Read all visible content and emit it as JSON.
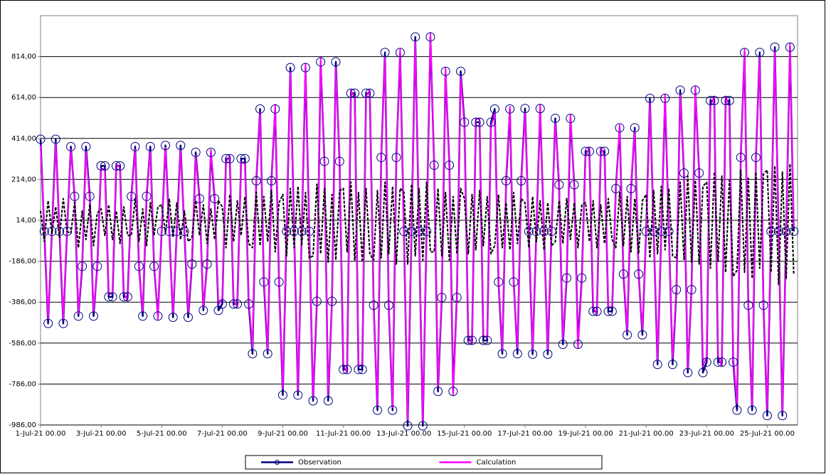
{
  "chart_data": {
    "type": "line",
    "categories": [
      "1-Jul-21 00.00",
      null,
      null,
      null,
      null,
      null,
      null,
      null,
      null,
      null,
      null,
      null,
      null,
      null,
      null,
      null,
      "3-Jul-21 00.00",
      null,
      null,
      null,
      null,
      null,
      null,
      null,
      null,
      null,
      null,
      null,
      null,
      null,
      null,
      null,
      "5-Jul-21 00.00",
      null,
      null,
      null,
      null,
      null,
      null,
      null,
      null,
      null,
      null,
      null,
      null,
      null,
      null,
      null,
      "7-Jul-21 00.00",
      null,
      null,
      null,
      null,
      null,
      null,
      null,
      null,
      null,
      null,
      null,
      null,
      null,
      null,
      null,
      "9-Jul-21 00.00",
      null,
      null,
      null,
      null,
      null,
      null,
      null,
      null,
      null,
      null,
      null,
      null,
      null,
      null,
      null,
      "11-Jul-21 00.00",
      null,
      null,
      null,
      null,
      null,
      null,
      null,
      null,
      null,
      null,
      null,
      null,
      null,
      null,
      null,
      "13-Jul-21 00.00",
      null,
      null,
      null,
      null,
      null,
      null,
      null,
      null,
      null,
      null,
      null,
      null,
      null,
      null,
      null,
      "15-Jul-21 00.00",
      null,
      null,
      null,
      null,
      null,
      null,
      null,
      null,
      null,
      null,
      null,
      null,
      null,
      null,
      null,
      "17-Jul-21 00.00",
      null,
      null,
      null,
      null,
      null,
      null,
      null,
      null,
      null,
      null,
      null,
      null,
      null,
      null,
      null,
      "19-Jul-21 00.00",
      null,
      null,
      null,
      null,
      null,
      null,
      null,
      null,
      null,
      null,
      null,
      null,
      null,
      null,
      null,
      "21-Jul-21 00.00",
      null,
      null,
      null,
      null,
      null,
      null,
      null,
      null,
      null,
      null,
      null,
      null,
      null,
      null,
      null,
      "23-Jul-21 00.00",
      null,
      null,
      null,
      null,
      null,
      null,
      null,
      null,
      null,
      null,
      null,
      null,
      null,
      null,
      null,
      "25-Jul-21 00.00",
      null,
      null,
      null,
      null,
      null,
      null,
      null
    ],
    "series": [
      {
        "name": "Observation",
        "color": "#000080",
        "marker": "circle",
        "values": [
          410,
          -40,
          -490,
          -40,
          410,
          -40,
          -490,
          -40,
          374,
          131,
          -454,
          -211,
          374,
          131,
          -454,
          -211,
          280,
          280,
          -360,
          -360,
          280,
          280,
          -360,
          -360,
          131,
          374,
          -211,
          -454,
          131,
          374,
          -211,
          -454,
          -40,
          380,
          -40,
          -460,
          -40,
          380,
          -40,
          -460,
          -200,
          346,
          120,
          -426,
          -200,
          346,
          120,
          -426,
          -395,
          315,
          315,
          -395,
          -395,
          315,
          315,
          -395,
          -638,
          207,
          558,
          -287,
          -638,
          207,
          558,
          -287,
          -840,
          -40,
          760,
          -40,
          -840,
          -40,
          760,
          -40,
          -868,
          -382,
          788,
          302,
          -868,
          -382,
          788,
          302,
          -715,
          -715,
          635,
          635,
          -715,
          -715,
          635,
          635,
          -401,
          -914,
          321,
          834,
          -401,
          -914,
          321,
          834,
          -40,
          -990,
          -40,
          910,
          -40,
          -990,
          -40,
          910,
          283,
          -822,
          -363,
          742,
          283,
          -822,
          -363,
          742,
          493,
          -573,
          -573,
          493,
          493,
          -573,
          -573,
          493,
          558,
          -287,
          -638,
          207,
          558,
          -287,
          -638,
          207,
          560,
          -40,
          -640,
          -40,
          560,
          -40,
          -640,
          -40,
          512,
          188,
          -592,
          -268,
          512,
          188,
          -592,
          -268,
          351,
          351,
          -431,
          -431,
          351,
          351,
          -431,
          -431,
          169,
          466,
          -249,
          -546,
          169,
          466,
          -249,
          -546,
          -40,
          610,
          -40,
          -690,
          -40,
          610,
          -40,
          -690,
          -325,
          650,
          245,
          -730,
          -325,
          650,
          245,
          -730,
          -679,
          599,
          599,
          -679,
          -679,
          599,
          599,
          -679,
          -914,
          321,
          834,
          -401,
          -914,
          321,
          834,
          -401,
          -940,
          -40,
          860,
          -40,
          -940,
          -40,
          860,
          -40
        ]
      },
      {
        "name": "Calculation",
        "color": "#ff00ff",
        "values": [
          380,
          -10,
          -470,
          -60,
          390,
          -20,
          -470,
          -30,
          360,
          150,
          -440,
          -190,
          350,
          110,
          -430,
          -230,
          270,
          260,
          -350,
          -340,
          290,
          270,
          -340,
          -380,
          120,
          360,
          -230,
          -430,
          150,
          350,
          -190,
          -470,
          -20,
          370,
          -60,
          -440,
          -50,
          360,
          -20,
          -440,
          -180,
          330,
          100,
          -410,
          -220,
          360,
          140,
          -400,
          -370,
          300,
          330,
          -380,
          -410,
          300,
          290,
          -370,
          -610,
          230,
          540,
          -260,
          -620,
          180,
          580,
          -300,
          -810,
          -10,
          740,
          -70,
          -820,
          -20,
          780,
          -60,
          -850,
          -360,
          810,
          280,
          -840,
          -400,
          760,
          330,
          -690,
          -730,
          650,
          610,
          -700,
          -690,
          620,
          650,
          -420,
          -890,
          340,
          810,
          -380,
          -900,
          300,
          850,
          -60,
          -960,
          -20,
          890,
          -20,
          -970,
          -60,
          930,
          300,
          -800,
          -340,
          760,
          260,
          -840,
          -380,
          720,
          470,
          -550,
          -590,
          510,
          510,
          -550,
          -560,
          470,
          540,
          -270,
          -620,
          230,
          570,
          -300,
          -610,
          190,
          540,
          -20,
          -620,
          -60,
          580,
          -60,
          -620,
          -20,
          490,
          210,
          -570,
          -250,
          530,
          170,
          -610,
          -290,
          330,
          370,
          -410,
          -450,
          370,
          330,
          -410,
          -410,
          150,
          480,
          -230,
          -530,
          190,
          450,
          -270,
          -520,
          -60,
          590,
          -20,
          -670,
          -20,
          630,
          -60,
          -660,
          -300,
          630,
          270,
          -710,
          -350,
          670,
          220,
          -700,
          -650,
          570,
          620,
          -650,
          -700,
          620,
          570,
          -650,
          -880,
          300,
          850,
          -420,
          -890,
          340,
          810,
          -380,
          -910,
          -20,
          840,
          -60,
          -920,
          -60,
          880,
          -20
        ]
      },
      {
        "color": "#000000",
        "dashed": true,
        "values": [
          60,
          -90,
          110,
          -50,
          80,
          -70,
          120,
          -40,
          -50,
          100,
          -120,
          60,
          -80,
          90,
          -110,
          50,
          70,
          -60,
          90,
          -80,
          60,
          -100,
          80,
          -60,
          -60,
          120,
          -90,
          70,
          -110,
          100,
          -60,
          80,
          90,
          -50,
          120,
          -70,
          100,
          -80,
          60,
          -90,
          -70,
          110,
          -60,
          90,
          -100,
          70,
          -80,
          110,
          80,
          -120,
          140,
          -90,
          110,
          -60,
          130,
          -100,
          -120,
          150,
          -110,
          130,
          -90,
          160,
          -140,
          100,
          140,
          -160,
          170,
          -120,
          180,
          -110,
          150,
          -170,
          -160,
          190,
          -150,
          170,
          -190,
          140,
          -180,
          160,
          170,
          -140,
          200,
          -180,
          150,
          -190,
          170,
          -150,
          -180,
          160,
          -170,
          200,
          -150,
          180,
          -200,
          170,
          150,
          -200,
          190,
          -160,
          170,
          -180,
          200,
          -140,
          -140,
          170,
          -160,
          150,
          -180,
          130,
          -150,
          170,
          120,
          -150,
          140,
          -130,
          160,
          -110,
          130,
          -150,
          -110,
          140,
          -120,
          100,
          -130,
          150,
          -100,
          120,
          100,
          -120,
          130,
          -90,
          110,
          -130,
          100,
          -110,
          -90,
          110,
          -100,
          120,
          -80,
          100,
          -120,
          90,
          100,
          -90,
          110,
          -120,
          90,
          -100,
          120,
          -80,
          -120,
          150,
          -110,
          130,
          -140,
          120,
          -150,
          110,
          140,
          -170,
          160,
          -150,
          180,
          -130,
          170,
          -160,
          -170,
          200,
          -180,
          230,
          -190,
          210,
          -200,
          180,
          200,
          -220,
          250,
          -190,
          230,
          -240,
          210,
          -260,
          -230,
          260,
          -240,
          220,
          -270,
          250,
          -220,
          240,
          260,
          -240,
          280,
          -300,
          250,
          -270,
          290,
          -250
        ]
      }
    ],
    "ylim": [
      -986,
      1014
    ],
    "yticks": [
      {
        "value": -986,
        "label": "-986,00"
      },
      {
        "value": -786,
        "label": "-786,00"
      },
      {
        "value": -586,
        "label": "-586,00"
      },
      {
        "value": -386,
        "label": "-386,00"
      },
      {
        "value": -186,
        "label": "-186,00"
      },
      {
        "value": 14,
        "label": "14,00"
      },
      {
        "value": 214,
        "label": "214,00"
      },
      {
        "value": 414,
        "label": "414,00"
      },
      {
        "value": 614,
        "label": "614,00"
      },
      {
        "value": 814,
        "label": "814,00"
      }
    ],
    "grid": true,
    "legend": "bottom"
  }
}
